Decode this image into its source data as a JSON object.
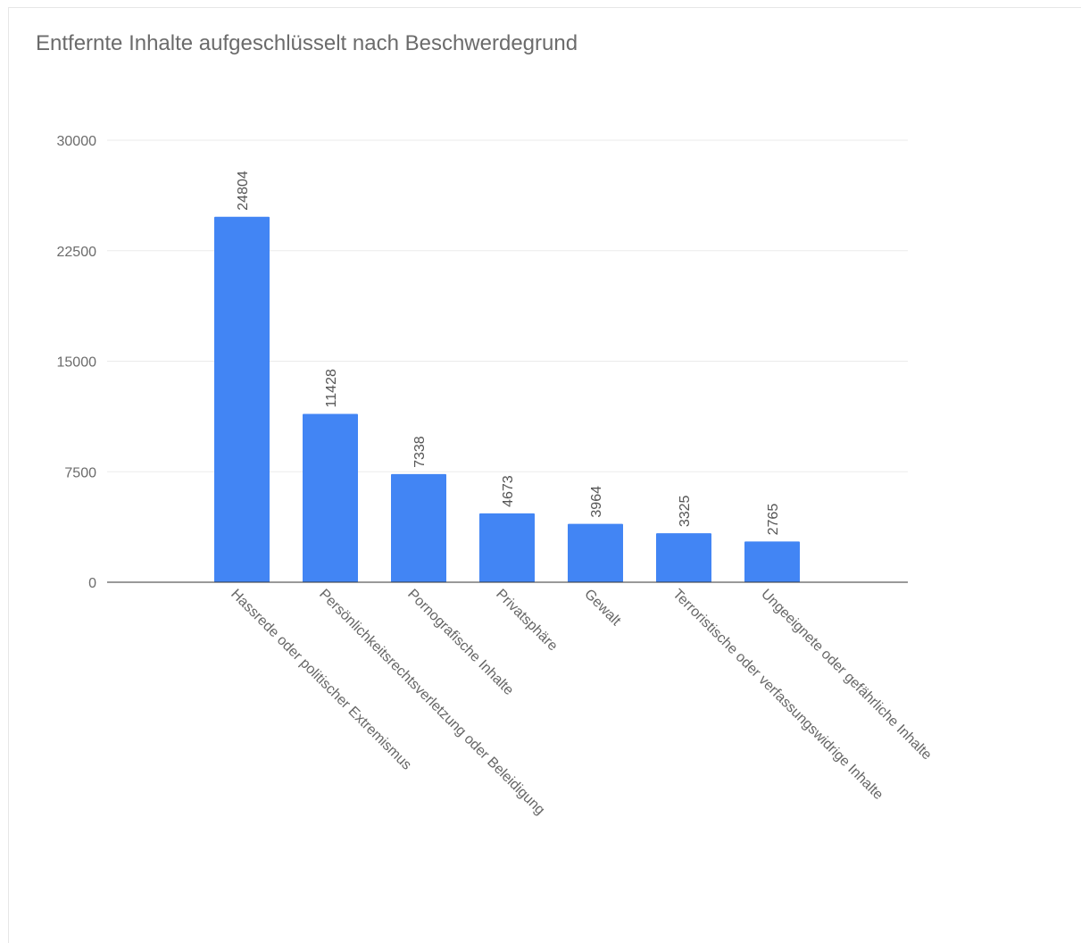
{
  "chart_data": {
    "type": "bar",
    "title": "Entfernte Inhalte aufgeschlüsselt nach Beschwerdegrund",
    "xlabel": "",
    "ylabel": "",
    "categories": [
      "Hassrede oder politischer Extremismus",
      "Persönlichkeitsrechtsverletzung oder Beleidigung",
      "Pornografische Inhalte",
      "Privatsphäre",
      "Gewalt",
      "Terroristische oder verfassungswidrige Inhalte",
      "Ungeeignete oder gefährliche Inhalte"
    ],
    "values": [
      24804,
      11428,
      7338,
      4673,
      3964,
      3325,
      2765
    ],
    "data_labels": [
      "24804",
      "11428",
      "7338",
      "4673",
      "3964",
      "3325",
      "2765"
    ],
    "ylim": [
      0,
      30000
    ],
    "yticks": [
      0,
      7500,
      15000,
      22500,
      30000
    ],
    "ytick_labels": [
      "0",
      "7500",
      "15000",
      "22500",
      "30000"
    ],
    "grid": true,
    "legend": "none",
    "colors": {
      "bar": "#4285f4",
      "gridline": "#ebebeb",
      "baseline": "#333333"
    }
  }
}
